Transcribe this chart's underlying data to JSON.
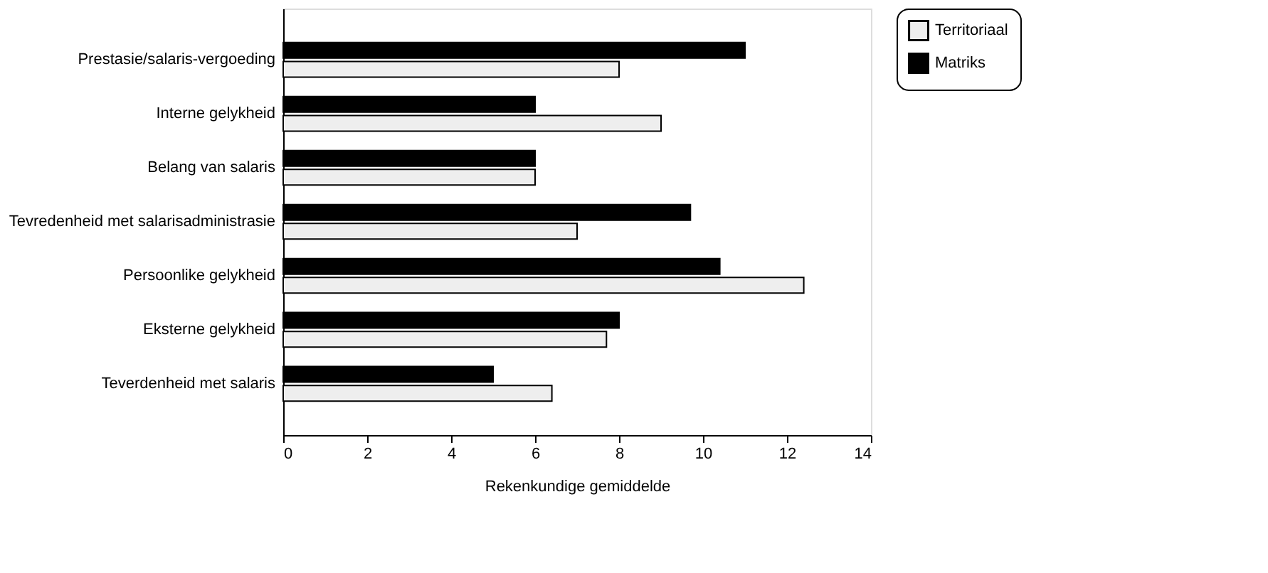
{
  "chart_data": {
    "type": "bar",
    "orientation": "horizontal",
    "xlabel": "Rekenkundige gemiddelde",
    "categories": [
      "Prestasie/salaris-vergoeding",
      "Interne gelykheid",
      "Belang van salaris",
      "Tevredenheid met salarisadministrasie",
      "Persoonlike gelykheid",
      "Eksterne gelykheid",
      "Teverdenheid met salaris"
    ],
    "series": [
      {
        "name": "Territoriaal",
        "color": "#eeeeee",
        "values": [
          8,
          9,
          6,
          7,
          12.4,
          7.7,
          6.4
        ]
      },
      {
        "name": "Matriks",
        "color": "#000000",
        "values": [
          11,
          6,
          6,
          9.7,
          10.4,
          8,
          5
        ]
      }
    ],
    "xlim": [
      0,
      14
    ],
    "xticks": [
      0,
      2,
      4,
      6,
      8,
      10,
      12,
      14
    ],
    "grid": false,
    "legend": "top right"
  }
}
